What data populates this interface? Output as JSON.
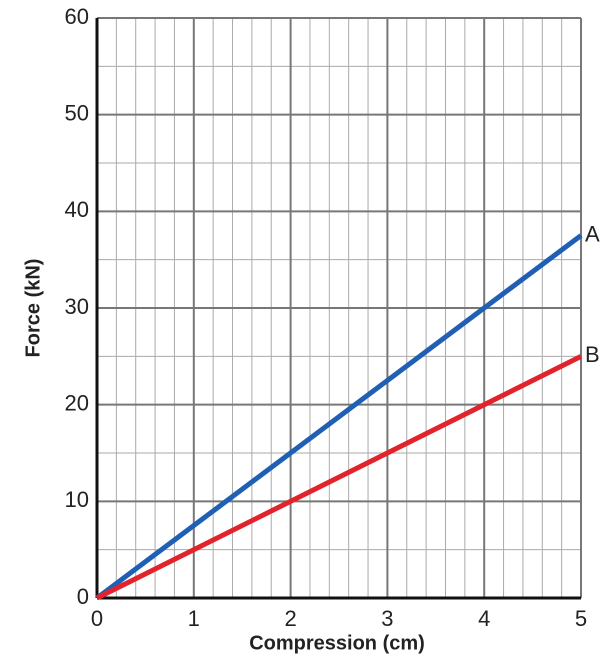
{
  "chart_data": {
    "type": "line",
    "x_label": "Compression (cm)",
    "y_label": "Force (kN)",
    "x": [
      0,
      5
    ],
    "series": [
      {
        "name": "A",
        "color": "#1f5fb4",
        "values": [
          0,
          37.5
        ]
      },
      {
        "name": "B",
        "color": "#e3232b",
        "values": [
          0,
          25
        ]
      }
    ],
    "xlim": [
      0,
      5
    ],
    "xticks": [
      0,
      1,
      2,
      3,
      4,
      5
    ],
    "ylim": [
      0,
      60
    ],
    "yticks": [
      0,
      10,
      20,
      30,
      40,
      50,
      60
    ],
    "grid": true
  }
}
